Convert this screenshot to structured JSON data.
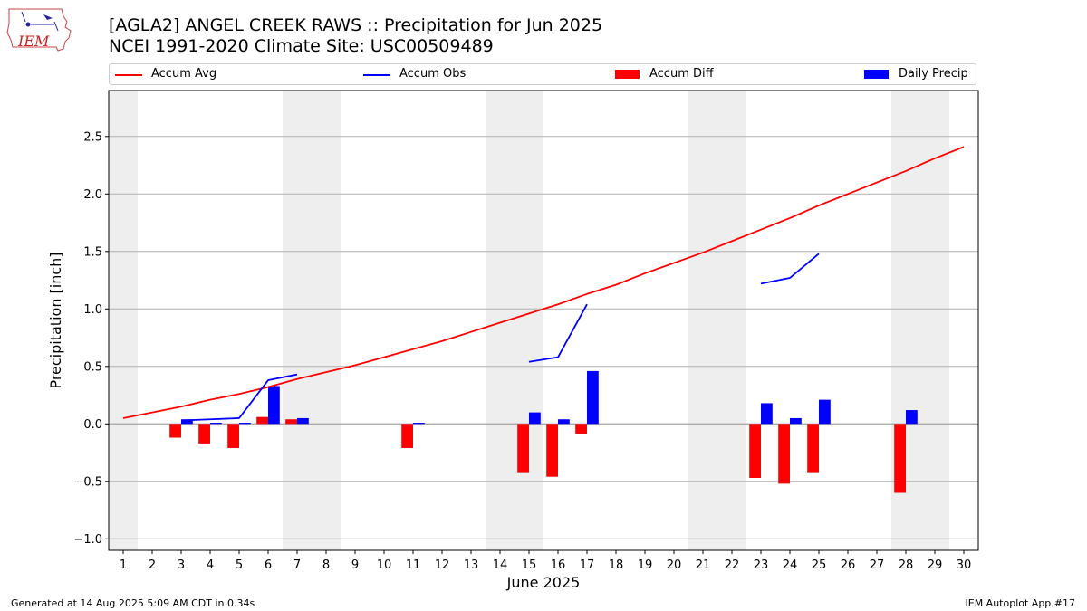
{
  "titles": {
    "line1": "[AGLA2] ANGEL CREEK RAWS :: Precipitation for Jun 2025",
    "line2": "NCEI 1991-2020 Climate Site: USC00509489"
  },
  "logo": {
    "text": "IEM",
    "icon": "iowa-state-map-logo"
  },
  "footer": {
    "left": "Generated at 14 Aug 2025 5:09 AM CDT in 0.34s",
    "right": "IEM Autoplot App #17"
  },
  "colors": {
    "avg": "#ff0000",
    "obs": "#0000ff",
    "diff": "#ff0000",
    "daily": "#0000ff",
    "weekend": "#eeeeee"
  },
  "chart_data": {
    "type": "bar",
    "xlabel": "June 2025",
    "ylabel": "Precipitation [inch]",
    "xlim": [
      0.5,
      30.5
    ],
    "ylim": [
      -1.1,
      2.9
    ],
    "yticks": [
      -1.0,
      -0.5,
      0.0,
      0.5,
      1.0,
      1.5,
      2.0,
      2.5
    ],
    "ytick_labels": [
      "−1.0",
      "−0.5",
      "0.0",
      "0.5",
      "1.0",
      "1.5",
      "2.0",
      "2.5"
    ],
    "days": [
      1,
      2,
      3,
      4,
      5,
      6,
      7,
      8,
      9,
      10,
      11,
      12,
      13,
      14,
      15,
      16,
      17,
      18,
      19,
      20,
      21,
      22,
      23,
      24,
      25,
      26,
      27,
      28,
      29,
      30
    ],
    "weekend_shading": [
      [
        0.5,
        1.5
      ],
      [
        6.5,
        8.5
      ],
      [
        13.5,
        15.5
      ],
      [
        20.5,
        22.5
      ],
      [
        27.5,
        29.5
      ]
    ],
    "grid": "horizontal",
    "legend": {
      "placement": "top",
      "entries": [
        {
          "label": "Accum Avg",
          "kind": "line",
          "color": "#ff0000"
        },
        {
          "label": "Accum Obs",
          "kind": "line",
          "color": "#0000ff"
        },
        {
          "label": "Accum Diff",
          "kind": "bar",
          "color": "#ff0000"
        },
        {
          "label": "Daily Precip",
          "kind": "bar",
          "color": "#0000ff"
        }
      ]
    },
    "series": [
      {
        "name": "Accum Avg",
        "type": "line",
        "x": [
          1,
          2,
          3,
          4,
          5,
          6,
          7,
          8,
          9,
          10,
          11,
          12,
          13,
          14,
          15,
          16,
          17,
          18,
          19,
          20,
          21,
          22,
          23,
          24,
          25,
          26,
          27,
          28,
          29,
          30
        ],
        "values": [
          0.05,
          0.1,
          0.15,
          0.21,
          0.26,
          0.32,
          0.39,
          0.45,
          0.51,
          0.58,
          0.65,
          0.72,
          0.8,
          0.88,
          0.96,
          1.04,
          1.13,
          1.21,
          1.31,
          1.4,
          1.49,
          1.59,
          1.69,
          1.79,
          1.9,
          2.0,
          2.1,
          2.2,
          2.31,
          2.41
        ]
      },
      {
        "name": "Accum Obs",
        "type": "line",
        "x": [
          3,
          4,
          5,
          6,
          7,
          null,
          15,
          16,
          17,
          null,
          23,
          24,
          25
        ],
        "values": [
          0.03,
          0.04,
          0.05,
          0.38,
          0.43,
          null,
          0.54,
          0.58,
          1.04,
          null,
          1.22,
          1.27,
          1.48
        ]
      },
      {
        "name": "Accum Diff",
        "type": "bar",
        "x": [
          3,
          4,
          5,
          6,
          7,
          11,
          15,
          16,
          17,
          23,
          24,
          25,
          28
        ],
        "values": [
          -0.12,
          -0.17,
          -0.21,
          0.06,
          0.04,
          -0.21,
          -0.42,
          -0.46,
          -0.09,
          -0.47,
          -0.52,
          -0.42,
          -0.6
        ]
      },
      {
        "name": "Daily Precip",
        "type": "bar",
        "x": [
          3,
          4,
          5,
          6,
          7,
          11,
          15,
          16,
          17,
          23,
          24,
          25,
          28
        ],
        "values": [
          0.04,
          0.01,
          0.01,
          0.33,
          0.05,
          0.01,
          0.1,
          0.04,
          0.46,
          0.18,
          0.05,
          0.21,
          0.12
        ]
      }
    ]
  }
}
